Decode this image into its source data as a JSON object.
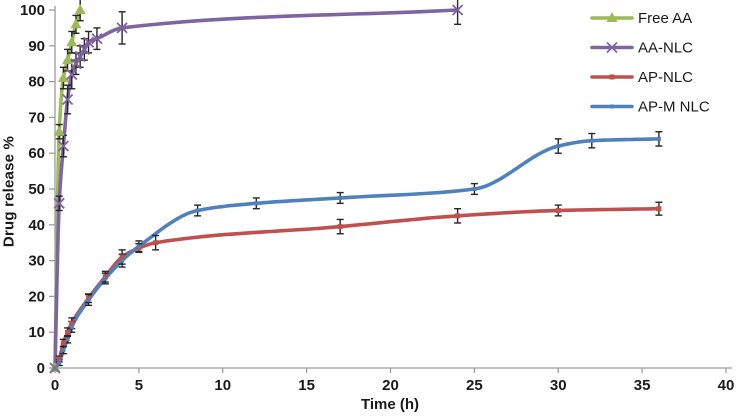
{
  "figure": {
    "title": "",
    "xlabel": "Time (h)",
    "ylabel": "Drug release %"
  },
  "colors": {
    "free_aa": "#9BBB59",
    "aa_nlc": "#8064A2",
    "ap_nlc": "#C0504D",
    "ap_mnlc": "#4F81BD",
    "error_bar": "#262626",
    "axis_line": "#9c9c9c",
    "text": "#1a1a1a",
    "background": "#ffffff"
  },
  "chart_data": {
    "type": "line",
    "title": "",
    "xlabel": "Time (h)",
    "ylabel": "Drug release %",
    "xlim": [
      0,
      40
    ],
    "ylim": [
      0,
      100
    ],
    "xticks": [
      0,
      5,
      10,
      15,
      20,
      25,
      30,
      35,
      40
    ],
    "yticks": [
      0,
      10,
      20,
      30,
      40,
      50,
      60,
      70,
      80,
      90,
      100
    ],
    "grid": false,
    "error_bars": true,
    "legend_position": "top-right",
    "series": [
      {
        "name": "Free AA",
        "color": "#9BBB59",
        "marker": "triangle",
        "x": [
          0,
          0.25,
          0.5,
          0.75,
          1,
          1.25,
          1.5
        ],
        "y": [
          0,
          66,
          81,
          86,
          91,
          96,
          100
        ],
        "err": [
          0,
          2,
          3,
          3,
          3,
          2.5,
          3
        ]
      },
      {
        "name": "AA-NLC",
        "color": "#8064A2",
        "marker": "x",
        "x": [
          0,
          0.25,
          0.5,
          0.75,
          1,
          1.25,
          1.5,
          1.75,
          2,
          2.5,
          4,
          24
        ],
        "y": [
          0,
          46,
          62,
          75,
          82,
          85,
          87,
          89,
          91,
          92,
          95,
          100
        ],
        "err": [
          0,
          2,
          3,
          4,
          4,
          3,
          3,
          3,
          3,
          3,
          4.5,
          4
        ]
      },
      {
        "name": "AP-NLC",
        "color": "#C0504D",
        "marker": "square",
        "x": [
          0,
          0.25,
          0.5,
          0.75,
          1,
          2,
          3,
          4,
          5,
          6,
          17,
          24,
          30,
          36
        ],
        "y": [
          0,
          2.5,
          7,
          10,
          12.5,
          19.5,
          25.5,
          31,
          33.5,
          35,
          39.5,
          42.5,
          44,
          44.5
        ],
        "err": [
          0,
          0.8,
          1,
          1.2,
          1.5,
          1.2,
          1.5,
          2,
          1.2,
          2,
          2,
          2,
          1.5,
          1.8
        ]
      },
      {
        "name": "AP-M NLC",
        "color": "#4F81BD",
        "marker": "dot",
        "x": [
          0,
          0.25,
          0.5,
          0.75,
          1,
          2,
          3,
          4,
          5,
          8.5,
          12,
          17,
          25,
          30,
          32,
          36
        ],
        "y": [
          0,
          1.5,
          5,
          8,
          11.5,
          19,
          25,
          30,
          34,
          44,
          46,
          47.5,
          50,
          62,
          63.5,
          64
        ],
        "err": [
          0,
          0.8,
          1,
          1,
          1.5,
          1.5,
          1.5,
          1.8,
          1.5,
          1.5,
          1.5,
          1.5,
          1.5,
          2,
          2,
          2
        ]
      }
    ]
  }
}
